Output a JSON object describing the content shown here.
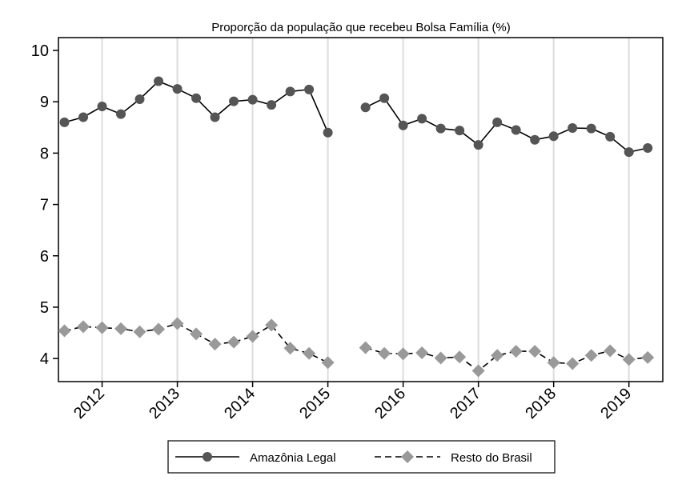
{
  "chart_data": {
    "type": "line",
    "title": "Proporção da população que recebeu Bolsa Família (%)",
    "xlabel": "",
    "ylabel": "",
    "ylim": [
      3.55,
      10.25
    ],
    "xlim": [
      2011.42,
      2019.45
    ],
    "yticks": [
      4,
      5,
      6,
      7,
      8,
      9,
      10
    ],
    "xticks": [
      2012,
      2013,
      2014,
      2015,
      2016,
      2017,
      2018,
      2019
    ],
    "grid": "vertical",
    "legend_position": "bottom",
    "series": [
      {
        "name": "Amazônia Legal",
        "style": "solid",
        "marker": "circle",
        "color": "#555555",
        "line_color": "#000000",
        "segments": [
          [
            {
              "x": 2011.5,
              "y": 8.6
            },
            {
              "x": 2011.75,
              "y": 8.7
            },
            {
              "x": 2012.0,
              "y": 8.91
            },
            {
              "x": 2012.25,
              "y": 8.76
            },
            {
              "x": 2012.5,
              "y": 9.05
            },
            {
              "x": 2012.75,
              "y": 9.4
            },
            {
              "x": 2013.0,
              "y": 9.25
            },
            {
              "x": 2013.25,
              "y": 9.07
            },
            {
              "x": 2013.5,
              "y": 8.7
            },
            {
              "x": 2013.75,
              "y": 9.01
            },
            {
              "x": 2014.0,
              "y": 9.04
            },
            {
              "x": 2014.25,
              "y": 8.94
            },
            {
              "x": 2014.5,
              "y": 9.2
            },
            {
              "x": 2014.75,
              "y": 9.24
            },
            {
              "x": 2015.0,
              "y": 8.4
            }
          ],
          [
            {
              "x": 2015.5,
              "y": 8.89
            },
            {
              "x": 2015.75,
              "y": 9.07
            },
            {
              "x": 2016.0,
              "y": 8.54
            },
            {
              "x": 2016.25,
              "y": 8.67
            },
            {
              "x": 2016.5,
              "y": 8.48
            },
            {
              "x": 2016.75,
              "y": 8.44
            },
            {
              "x": 2017.0,
              "y": 8.16
            },
            {
              "x": 2017.25,
              "y": 8.6
            },
            {
              "x": 2017.5,
              "y": 8.45
            },
            {
              "x": 2017.75,
              "y": 8.26
            },
            {
              "x": 2018.0,
              "y": 8.33
            },
            {
              "x": 2018.25,
              "y": 8.49
            },
            {
              "x": 2018.5,
              "y": 8.48
            },
            {
              "x": 2018.75,
              "y": 8.32
            },
            {
              "x": 2019.0,
              "y": 8.02
            },
            {
              "x": 2019.25,
              "y": 8.1
            }
          ]
        ]
      },
      {
        "name": "Resto do Brasil",
        "style": "dashed",
        "marker": "diamond",
        "color": "#999999",
        "line_color": "#000000",
        "segments": [
          [
            {
              "x": 2011.5,
              "y": 4.54
            },
            {
              "x": 2011.75,
              "y": 4.62
            },
            {
              "x": 2012.0,
              "y": 4.6
            },
            {
              "x": 2012.25,
              "y": 4.58
            },
            {
              "x": 2012.5,
              "y": 4.52
            },
            {
              "x": 2012.75,
              "y": 4.57
            },
            {
              "x": 2013.0,
              "y": 4.68
            },
            {
              "x": 2013.25,
              "y": 4.48
            },
            {
              "x": 2013.5,
              "y": 4.28
            },
            {
              "x": 2013.75,
              "y": 4.32
            },
            {
              "x": 2014.0,
              "y": 4.43
            },
            {
              "x": 2014.25,
              "y": 4.65
            },
            {
              "x": 2014.5,
              "y": 4.2
            },
            {
              "x": 2014.75,
              "y": 4.1
            },
            {
              "x": 2015.0,
              "y": 3.92
            }
          ],
          [
            {
              "x": 2015.5,
              "y": 4.21
            },
            {
              "x": 2015.75,
              "y": 4.1
            },
            {
              "x": 2016.0,
              "y": 4.09
            },
            {
              "x": 2016.25,
              "y": 4.11
            },
            {
              "x": 2016.5,
              "y": 4.01
            },
            {
              "x": 2016.75,
              "y": 4.03
            },
            {
              "x": 2017.0,
              "y": 3.76
            },
            {
              "x": 2017.25,
              "y": 4.06
            },
            {
              "x": 2017.5,
              "y": 4.14
            },
            {
              "x": 2017.75,
              "y": 4.14
            },
            {
              "x": 2018.0,
              "y": 3.92
            },
            {
              "x": 2018.25,
              "y": 3.9
            },
            {
              "x": 2018.5,
              "y": 4.06
            },
            {
              "x": 2018.75,
              "y": 4.15
            },
            {
              "x": 2019.0,
              "y": 3.98
            },
            {
              "x": 2019.25,
              "y": 4.02
            }
          ]
        ]
      }
    ]
  }
}
